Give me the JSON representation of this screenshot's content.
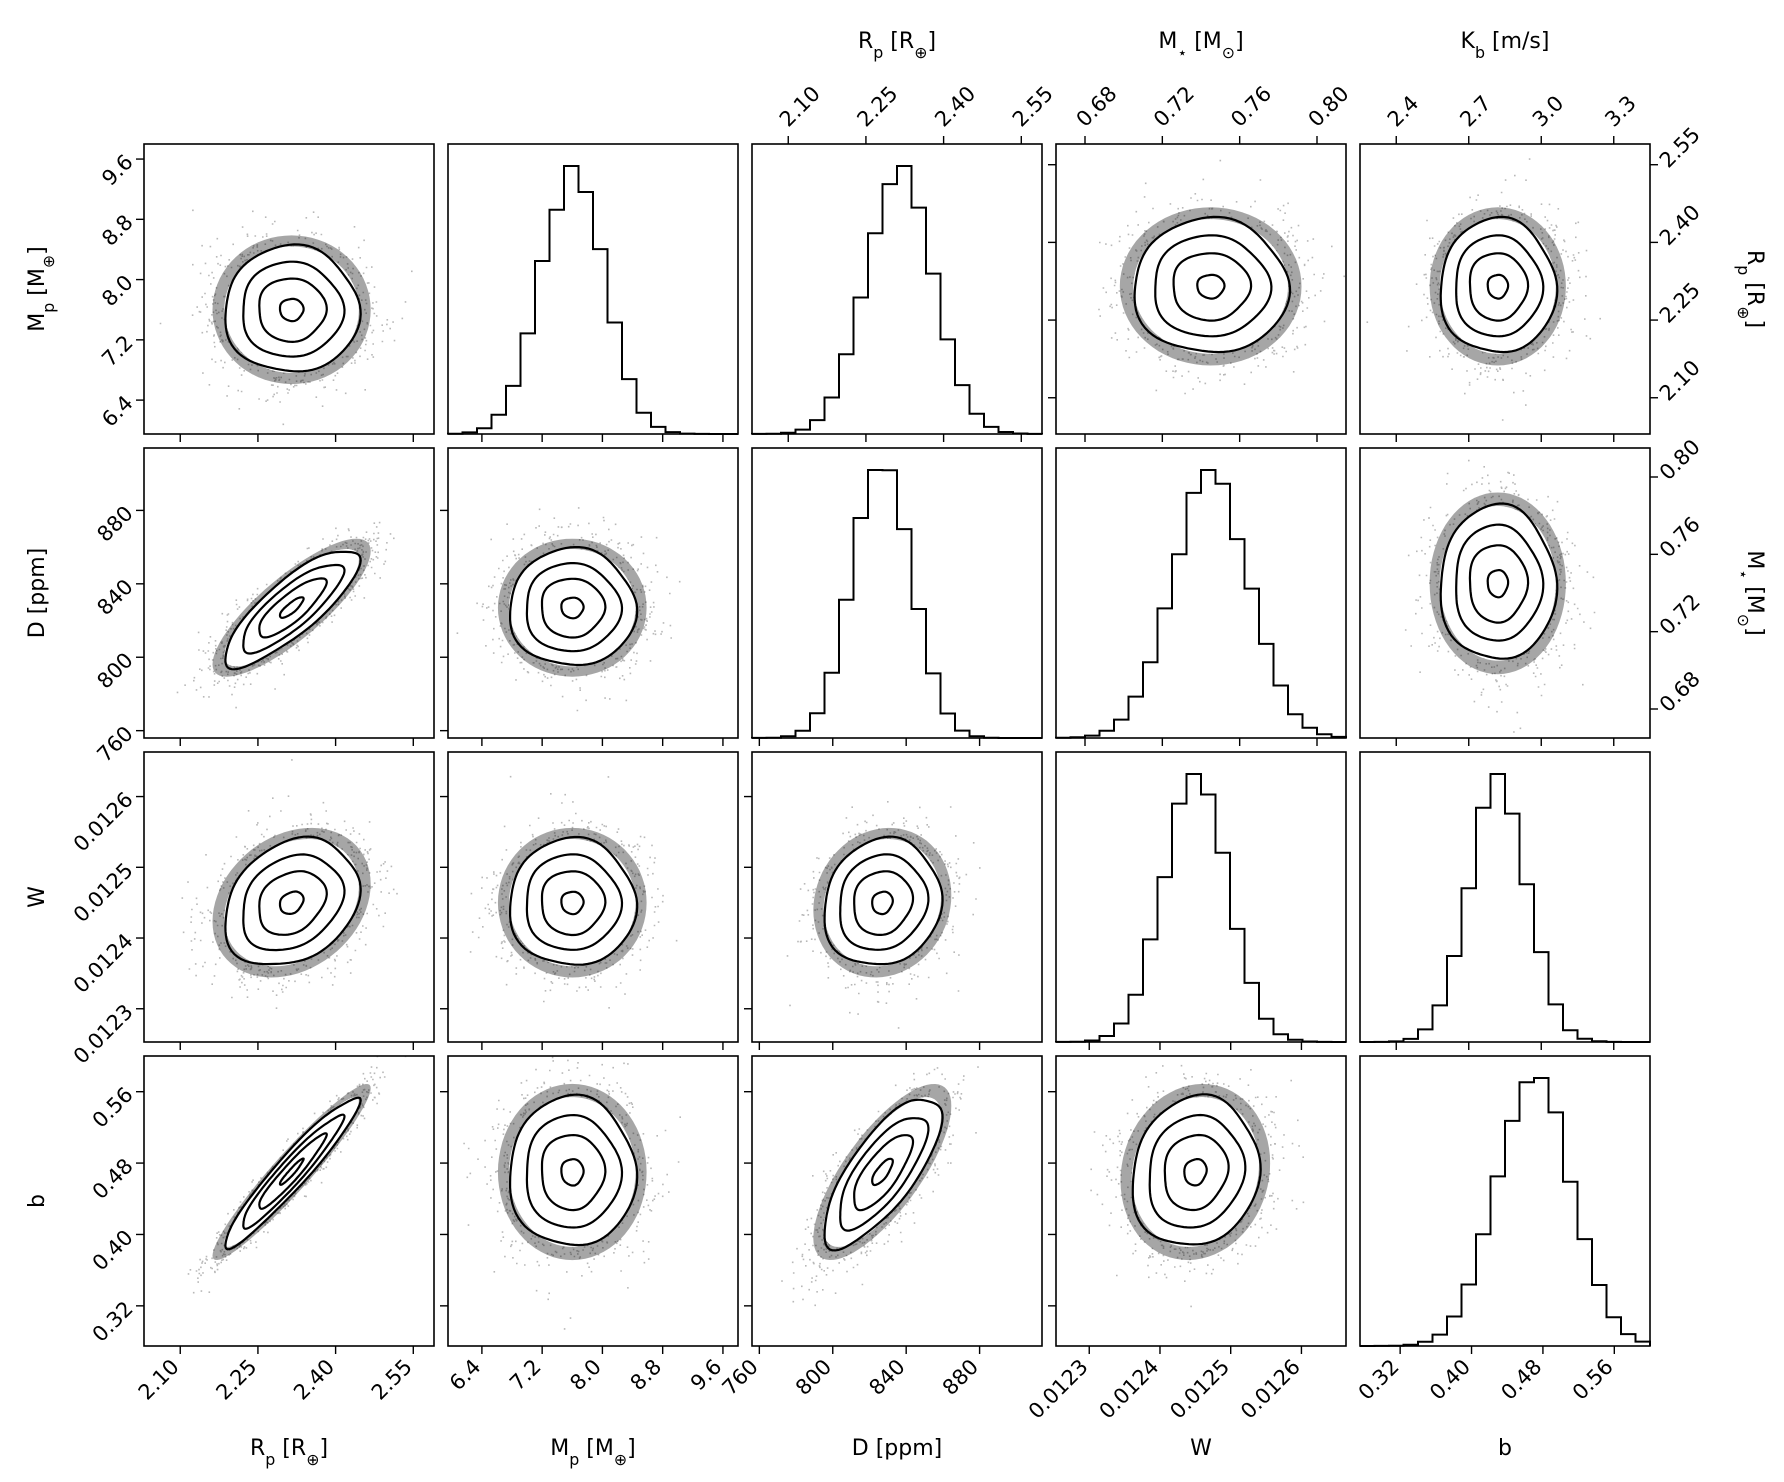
{
  "figure": {
    "axis_labels": {
      "Rp": "R_p [R_⊕]",
      "Mp": "M_p [M_⊕]",
      "D": "D [ppm]",
      "W": "W",
      "b": "b",
      "Mstar": "M_⋆ [M_⊙]",
      "Kb": "K_b [m/s]"
    }
  },
  "chart_data": {
    "type": "corner",
    "panel_types": [
      "scatter",
      "heatmap",
      "histogram"
    ],
    "grid": false,
    "variables": [
      {
        "key": "Rp",
        "label": "R_p [R_⊕]",
        "range": [
          2.03,
          2.59
        ],
        "ticks": [
          "2.10",
          "2.25",
          "2.40",
          "2.55"
        ],
        "tick_values": [
          2.1,
          2.25,
          2.4,
          2.55
        ],
        "mean": 2.315,
        "sd": 0.065
      },
      {
        "key": "Mp",
        "label": "M_p [M_⊕]",
        "range": [
          5.95,
          9.8
        ],
        "ticks": [
          "6.4",
          "7.2",
          "8.0",
          "8.8",
          "9.6"
        ],
        "tick_values": [
          6.4,
          7.2,
          8.0,
          8.8,
          9.6
        ],
        "mean": 7.6,
        "sd": 0.42
      },
      {
        "key": "D",
        "label": "D [ppm]",
        "range": [
          756,
          914
        ],
        "ticks": [
          "760",
          "800",
          "840",
          "880"
        ],
        "tick_values": [
          760,
          800,
          840,
          880
        ],
        "mean": 827,
        "sd": 16
      },
      {
        "key": "W",
        "label": "W",
        "range": [
          0.012253,
          0.012663
        ],
        "ticks": [
          "0.0123",
          "0.0124",
          "0.0125",
          "0.0126"
        ],
        "tick_values": [
          0.0123,
          0.0124,
          0.0125,
          0.0126
        ],
        "mean": 0.01245,
        "sd": 4.5e-05
      },
      {
        "key": "b",
        "label": "b",
        "range": [
          0.275,
          0.6
        ],
        "ticks": [
          "0.32",
          "0.40",
          "0.48",
          "0.56"
        ],
        "tick_values": [
          0.32,
          0.4,
          0.48,
          0.56
        ],
        "mean": 0.47,
        "sd": 0.042
      }
    ],
    "extra_variables": [
      {
        "key": "Mstar",
        "label": "M_⋆ [M_⊙]",
        "range": [
          0.665,
          0.815
        ],
        "ticks": [
          "0.68",
          "0.72",
          "0.76",
          "0.80"
        ],
        "tick_values": [
          0.68,
          0.72,
          0.76,
          0.8
        ],
        "mean": 0.745,
        "sd": 0.02
      },
      {
        "key": "Kb",
        "label": "K_b [m/s]",
        "range": [
          2.25,
          3.45
        ],
        "ticks": [
          "2.4",
          "2.7",
          "3.0",
          "3.3"
        ],
        "tick_values": [
          2.4,
          2.7,
          3.0,
          3.3
        ],
        "mean": 2.82,
        "sd": 0.12
      }
    ],
    "panels": [
      {
        "row": 0,
        "col": 0,
        "kind": "2d",
        "x": "Rp",
        "y": "Mp",
        "rho": 0.0
      },
      {
        "row": 0,
        "col": 1,
        "kind": "hist",
        "x": "Mp"
      },
      {
        "row": 0,
        "col": 2,
        "kind": "hist",
        "x": "Rp",
        "top_axis": "Rp"
      },
      {
        "row": 0,
        "col": 3,
        "kind": "2d",
        "x": "Mstar",
        "y": "Rp",
        "rho": 0.0,
        "top_axis": "Mstar"
      },
      {
        "row": 0,
        "col": 4,
        "kind": "2d",
        "x": "Kb",
        "y": "Rp",
        "rho": 0.0,
        "top_axis": "Kb",
        "right_axis": "Rp"
      },
      {
        "row": 1,
        "col": 0,
        "kind": "2d",
        "x": "Rp",
        "y": "D",
        "rho": 0.82
      },
      {
        "row": 1,
        "col": 1,
        "kind": "2d",
        "x": "Mp",
        "y": "D",
        "rho": 0.0
      },
      {
        "row": 1,
        "col": 2,
        "kind": "hist",
        "x": "D"
      },
      {
        "row": 1,
        "col": 3,
        "kind": "hist",
        "x": "Mstar"
      },
      {
        "row": 1,
        "col": 4,
        "kind": "2d",
        "x": "Kb",
        "y": "Mstar",
        "rho": 0.0,
        "right_axis": "Mstar"
      },
      {
        "row": 2,
        "col": 0,
        "kind": "2d",
        "x": "Rp",
        "y": "W",
        "rho": 0.25
      },
      {
        "row": 2,
        "col": 1,
        "kind": "2d",
        "x": "Mp",
        "y": "W",
        "rho": 0.0
      },
      {
        "row": 2,
        "col": 2,
        "kind": "2d",
        "x": "D",
        "y": "W",
        "rho": 0.1
      },
      {
        "row": 2,
        "col": 3,
        "kind": "hist",
        "x": "W"
      },
      {
        "row": 2,
        "col": 4,
        "kind": "hist",
        "x": "Kb"
      },
      {
        "row": 3,
        "col": 0,
        "kind": "2d",
        "x": "Rp",
        "y": "b",
        "rho": 0.95
      },
      {
        "row": 3,
        "col": 1,
        "kind": "2d",
        "x": "Mp",
        "y": "b",
        "rho": 0.0
      },
      {
        "row": 3,
        "col": 2,
        "kind": "2d",
        "x": "D",
        "y": "b",
        "rho": 0.75
      },
      {
        "row": 3,
        "col": 3,
        "kind": "2d",
        "x": "W",
        "y": "b",
        "rho": 0.1
      },
      {
        "row": 3,
        "col": 4,
        "kind": "hist",
        "x": "b"
      }
    ],
    "contour_levels_sigma": [
      0.5,
      1.0,
      1.5,
      2.0
    ],
    "colors": {
      "ink": "#000000",
      "background": "#ffffff"
    }
  }
}
